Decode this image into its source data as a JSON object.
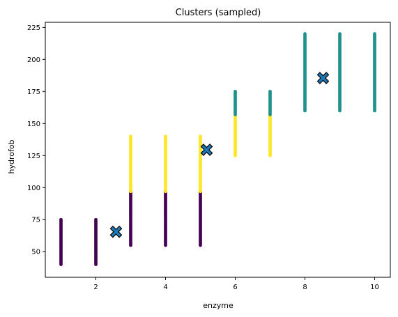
{
  "chart_data": {
    "type": "scatter",
    "title": "Clusters (sampled)",
    "xlabel": "enzyme",
    "ylabel": "hydrofob",
    "xlim": [
      0.55,
      10.45
    ],
    "ylim": [
      30,
      229
    ],
    "xticks": [
      2,
      4,
      6,
      8,
      10
    ],
    "yticks": [
      50,
      75,
      100,
      125,
      150,
      175,
      200,
      225
    ],
    "grid": false,
    "series": [
      {
        "color": "#440154",
        "segments": [
          {
            "x": 1,
            "y_from": 40,
            "y_to": 75
          },
          {
            "x": 2,
            "y_from": 40,
            "y_to": 75
          },
          {
            "x": 3,
            "y_from": 55,
            "y_to": 97
          },
          {
            "x": 4,
            "y_from": 55,
            "y_to": 97
          },
          {
            "x": 5,
            "y_from": 55,
            "y_to": 97
          }
        ]
      },
      {
        "color": "#fde725",
        "segments": [
          {
            "x": 3,
            "y_from": 97,
            "y_to": 140
          },
          {
            "x": 4,
            "y_from": 97,
            "y_to": 140
          },
          {
            "x": 5,
            "y_from": 97,
            "y_to": 140
          },
          {
            "x": 6,
            "y_from": 125,
            "y_to": 157
          },
          {
            "x": 7,
            "y_from": 125,
            "y_to": 157
          }
        ]
      },
      {
        "color": "#21918c",
        "segments": [
          {
            "x": 6,
            "y_from": 157,
            "y_to": 175
          },
          {
            "x": 7,
            "y_from": 157,
            "y_to": 175
          },
          {
            "x": 8,
            "y_from": 160,
            "y_to": 220
          },
          {
            "x": 9,
            "y_from": 160,
            "y_to": 220
          },
          {
            "x": 10,
            "y_from": 160,
            "y_to": 220
          }
        ]
      }
    ],
    "centroids": {
      "color": "#1f77b4",
      "marker": "X",
      "points": [
        {
          "x": 2.58,
          "y": 65.5
        },
        {
          "x": 5.18,
          "y": 129.5
        },
        {
          "x": 8.52,
          "y": 185.5
        }
      ]
    }
  }
}
